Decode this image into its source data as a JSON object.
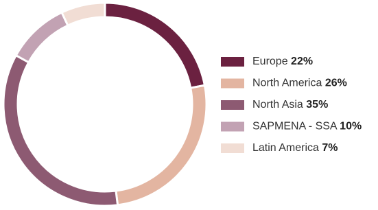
{
  "chart_data": {
    "type": "donut",
    "categories": [
      "Europe",
      "North America",
      "North Asia",
      "SAPMENA - SSA",
      "Latin America"
    ],
    "values": [
      22,
      26,
      35,
      10,
      7
    ],
    "value_labels": [
      "22%",
      "26%",
      "35%",
      "10%",
      "7%"
    ],
    "colors": [
      "#6b2140",
      "#e3b5a1",
      "#8d5a72",
      "#c2a2b3",
      "#f1ddd4"
    ],
    "legend": "right"
  }
}
